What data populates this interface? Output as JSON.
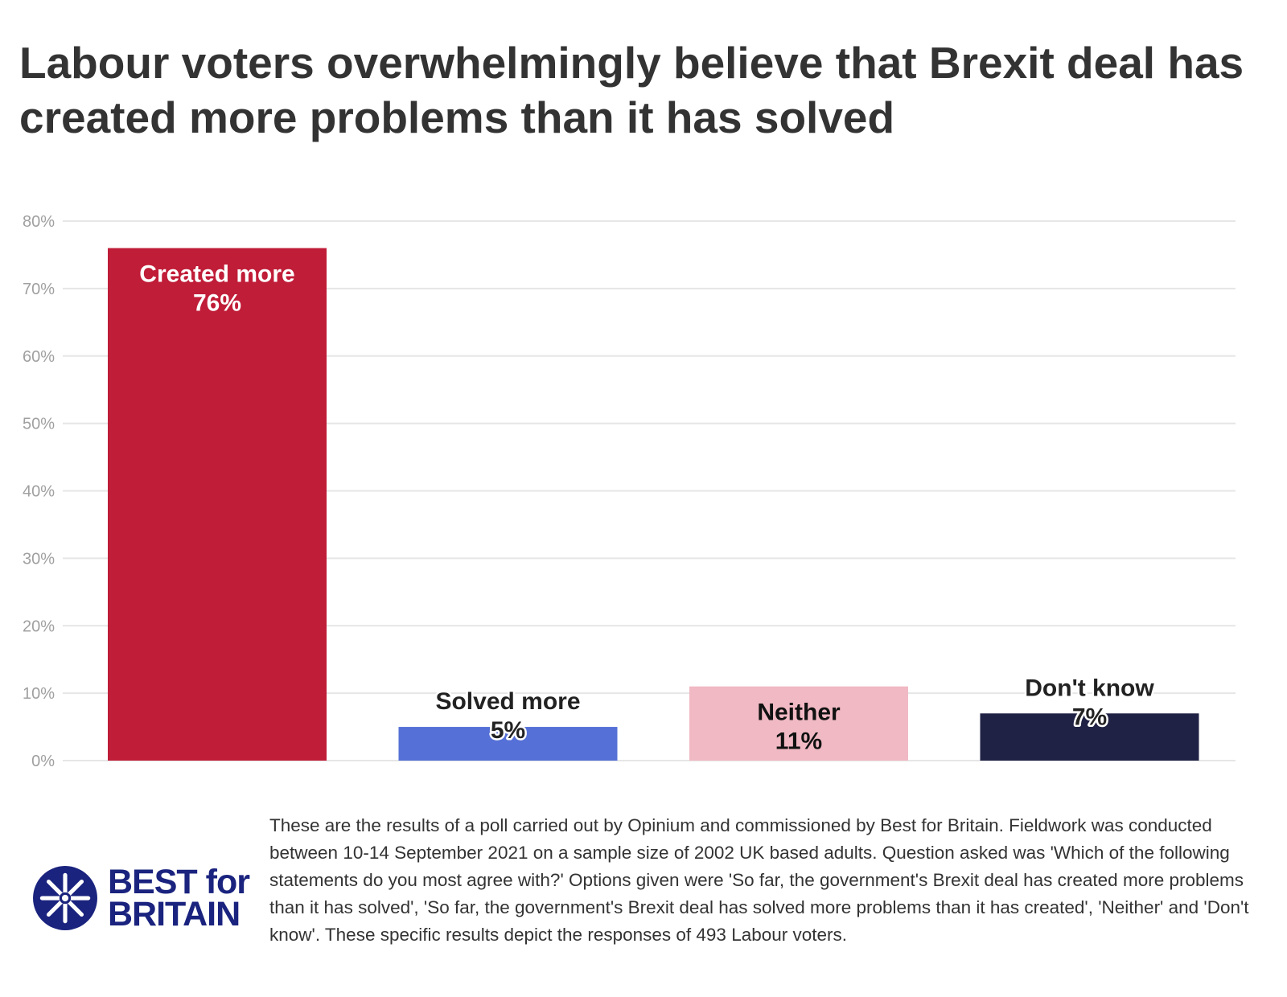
{
  "title": "Labour voters overwhelmingly believe that Brexit deal has created more problems than it has solved",
  "chart_data": {
    "type": "bar",
    "categories": [
      "Created more",
      "Solved more",
      "Neither",
      "Don't know"
    ],
    "values": [
      76,
      5,
      11,
      7
    ],
    "value_labels": [
      "76%",
      "5%",
      "11%",
      "7%"
    ],
    "colors": [
      "#c01d38",
      "#5570d6",
      "#f0b9c3",
      "#1f2244"
    ],
    "y_ticks": [
      "0%",
      "10%",
      "20%",
      "30%",
      "40%",
      "50%",
      "60%",
      "70%",
      "80%"
    ],
    "ylim": [
      0,
      80
    ],
    "grid": true
  },
  "footer": {
    "note": "These are the results of a poll carried out by Opinium and commissioned by Best for Britain. Fieldwork was conducted between 10-14 September 2021 on a sample size of 2002 UK based adults. Question asked was 'Which of the following statements do you most agree with?' Options given were 'So far, the government's Brexit deal has created more problems than it has solved', 'So far, the government's Brexit deal has solved more problems than it has created', 'Neither' and 'Don't know'. These specific results depict the responses of 493 Labour voters."
  },
  "logo": {
    "line1": "BEST for",
    "line2": "BRITAIN",
    "color": "#1a237e",
    "icon": "union-flag-circle-icon"
  }
}
